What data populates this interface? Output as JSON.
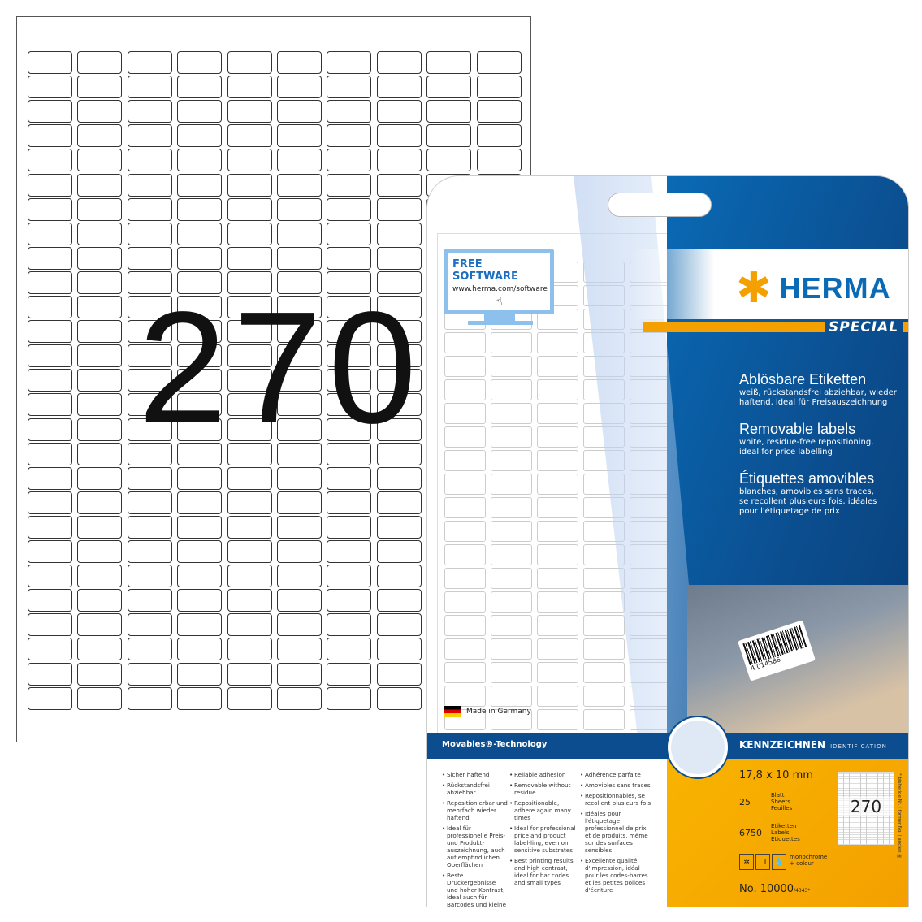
{
  "sheet": {
    "big_count": "270",
    "columns": 10,
    "rows": 27
  },
  "package": {
    "free_software": {
      "title": "FREE SOFTWARE",
      "url": "www.herma.com/software",
      "icon": "hand-pointer-icon"
    },
    "brand": {
      "name": "HERMA",
      "logo_icon": "asterisk-icon",
      "line": "SPECIAL"
    },
    "titles": [
      {
        "title": "Ablösbare Etiketten",
        "sub": [
          "weiß, rückstandsfrei abziehbar, wieder",
          "haftend, ideal für Preisauszeichnung"
        ]
      },
      {
        "title": "Removable labels",
        "sub": [
          "white, residue-free repositioning,",
          "ideal for price labelling"
        ]
      },
      {
        "title": "Étiquettes amovibles",
        "sub": [
          "blanches, amovibles sans traces,",
          "se recollent plusieurs fois, idéales",
          "pour l'étiquetage de prix"
        ]
      }
    ],
    "barcode_number": "4 014586",
    "made_in": "Made in Germany",
    "technology": "Movables®-Technology",
    "features": {
      "de": [
        "Sicher haftend",
        "Rückstandsfrei abziehbar",
        "Repositionierbar und mehrfach wieder haftend",
        "Ideal für professionelle Preis- und Produkt-auszeichnung, auch auf empfindlichen Oberflächen",
        "Beste Druckergebnisse und hoher Kontrast, ideal auch für Barcodes und kleine Schriften"
      ],
      "en": [
        "Reliable adhesion",
        "Removable without residue",
        "Repositionable, adhere again many times",
        "Ideal for professional price and product label-ling, even on sensitive substrates",
        "Best printing results and high contrast, ideal for bar codes and small types"
      ],
      "fr": [
        "Adhérence parfaite",
        "Amovibles sans traces",
        "Repositionnables, se recollent plusieurs fois",
        "Idéales pour l'étiquetage professionnel de prix et de produits, même sur des surfaces sensibles",
        "Excellente qualité d'impression, idéal pour les codes-barres et les petites polices d'écriture"
      ]
    },
    "category": {
      "de": "KENNZEICHNEN",
      "en": "IDENTIFICATION"
    },
    "size": "17,8 x 10 mm",
    "sheets": {
      "value": "25",
      "labels": [
        "Blatt",
        "Sheets",
        "Feuilles"
      ]
    },
    "labels": {
      "value": "6750",
      "labels": [
        "Etiketten",
        "Labels",
        "Étiquettes"
      ]
    },
    "printers": {
      "icons": [
        "laser-icon",
        "copy-icon",
        "ink-icon"
      ],
      "laser": "Laser",
      "copy": "Copy",
      "ink": "Ink",
      "text": [
        "monochrome",
        "+ colour"
      ]
    },
    "article_no": "No. 10000",
    "former_no": "/4343*",
    "former_note": "* bisherige Nr. | former No. | ancien №",
    "thumb_count": "270"
  },
  "colors": {
    "blue": "#0b4d8e",
    "accent_blue": "#0a6ab5",
    "orange": "#f4a000"
  }
}
